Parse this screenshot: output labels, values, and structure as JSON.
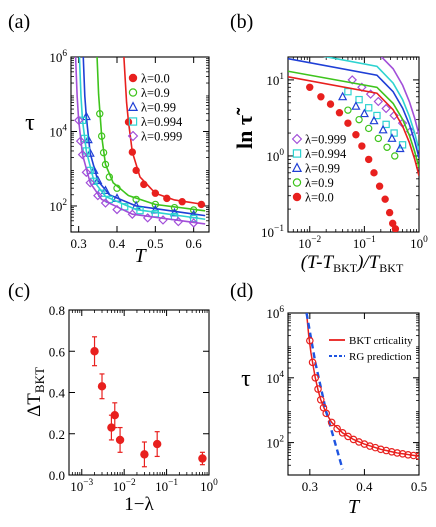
{
  "panels": {
    "a": {
      "label": "(a)"
    },
    "b": {
      "label": "(b)"
    },
    "c": {
      "label": "(c)"
    },
    "d": {
      "label": "(d)"
    }
  },
  "chart_data": [
    {
      "panel": "a",
      "type": "scatter",
      "xlabel": "T",
      "ylabel": "τ",
      "xscale": "linear",
      "yscale": "log",
      "xlim": [
        0.28,
        0.64
      ],
      "ylim": [
        20,
        1000000
      ],
      "xticks": [
        "0.3",
        "0.4",
        "0.5",
        "0.6"
      ],
      "yticks": [
        "10^2",
        "10^4",
        "10^6"
      ],
      "legend_position": "top-right",
      "series": [
        {
          "name": "λ=0.0",
          "marker": "filled-circle",
          "color": "#e8201e",
          "x": [
            0.43,
            0.44,
            0.45,
            0.47,
            0.5,
            0.53,
            0.57,
            0.62
          ],
          "y": [
            18000,
            2800,
            900,
            380,
            220,
            160,
            130,
            110
          ],
          "fit_x": [
            0.418,
            0.425,
            0.43,
            0.44,
            0.46,
            0.5,
            0.55,
            0.63
          ],
          "fit_y": [
            1000000,
            60000,
            18000,
            2800,
            600,
            220,
            145,
            108
          ]
        },
        {
          "name": "λ=0.9",
          "marker": "open-circle",
          "color": "#3ec41c",
          "x": [
            0.355,
            0.36,
            0.365,
            0.37,
            0.38,
            0.4,
            0.45,
            0.5,
            0.55,
            0.6
          ],
          "y": [
            30000,
            7500,
            2700,
            1300,
            600,
            300,
            150,
            110,
            90,
            78
          ],
          "fit_x": [
            0.348,
            0.352,
            0.36,
            0.37,
            0.39,
            0.43,
            0.5,
            0.63
          ],
          "fit_y": [
            1000000,
            100000,
            7500,
            1300,
            420,
            190,
            110,
            74
          ]
        },
        {
          "name": "λ=0.99",
          "marker": "open-triangle",
          "color": "#1f3fd6",
          "x": [
            0.32,
            0.325,
            0.33,
            0.34,
            0.35,
            0.37,
            0.4,
            0.45,
            0.5,
            0.55,
            0.6
          ],
          "y": [
            25000,
            6000,
            2600,
            900,
            480,
            260,
            160,
            100,
            78,
            65,
            58
          ],
          "fit_x": [
            0.312,
            0.316,
            0.32,
            0.33,
            0.35,
            0.38,
            0.45,
            0.63
          ],
          "fit_y": [
            1000000,
            90000,
            25000,
            2600,
            480,
            200,
            100,
            55
          ]
        },
        {
          "name": "λ=0.994",
          "marker": "open-square",
          "color": "#2ed3d0",
          "x": [
            0.31,
            0.315,
            0.32,
            0.33,
            0.34,
            0.36,
            0.38,
            0.42,
            0.46,
            0.5,
            0.55,
            0.6
          ],
          "y": [
            20000,
            6500,
            3000,
            900,
            460,
            220,
            150,
            95,
            75,
            62,
            52,
            46
          ],
          "fit_x": [
            0.302,
            0.306,
            0.31,
            0.32,
            0.34,
            0.37,
            0.45,
            0.63
          ],
          "fit_y": [
            1000000,
            90000,
            20000,
            3000,
            460,
            180,
            80,
            44
          ]
        },
        {
          "name": "λ=0.999",
          "marker": "open-diamond",
          "color": "#a24fd9",
          "x": [
            0.3,
            0.305,
            0.31,
            0.32,
            0.33,
            0.35,
            0.37,
            0.4,
            0.44,
            0.48,
            0.52,
            0.56,
            0.6
          ],
          "y": [
            20000,
            5500,
            2400,
            800,
            420,
            190,
            120,
            80,
            60,
            48,
            42,
            38,
            35
          ],
          "fit_x": [
            0.292,
            0.296,
            0.3,
            0.31,
            0.33,
            0.36,
            0.44,
            0.63
          ],
          "fit_y": [
            1000000,
            90000,
            20000,
            2400,
            420,
            150,
            60,
            33
          ]
        }
      ]
    },
    {
      "panel": "b",
      "type": "scatter",
      "xlabel": "(T-TBKT)/TBKT",
      "ylabel": "ln τ̃",
      "xscale": "log",
      "yscale": "log",
      "xlim": [
        0.004,
        1
      ],
      "ylim": [
        0.1,
        20
      ],
      "xticks": [
        "10^-2",
        "10^-1",
        "10^0"
      ],
      "yticks": [
        "10^-1",
        "10^0",
        "10^1"
      ],
      "legend_position": "bottom-left",
      "series": [
        {
          "name": "λ=0.999",
          "marker": "open-diamond",
          "color": "#a24fd9",
          "x": [
            0.06,
            0.09,
            0.13,
            0.18,
            0.25,
            0.35,
            0.5,
            0.7
          ],
          "y": [
            10,
            8,
            6.5,
            5.2,
            4.2,
            3.4,
            2.7,
            2.1
          ],
          "fit_x": [
            0.004,
            1
          ],
          "fit_y": [
            38,
            1.9
          ]
        },
        {
          "name": "λ=0.994",
          "marker": "open-square",
          "color": "#2ed3d0",
          "x": [
            0.05,
            0.08,
            0.12,
            0.17,
            0.25,
            0.35,
            0.5
          ],
          "y": [
            7,
            5.5,
            4.3,
            3.4,
            2.6,
            2,
            1.4
          ],
          "fit_x": [
            0.004,
            1
          ],
          "fit_y": [
            25,
            1.2
          ]
        },
        {
          "name": "λ=0.99",
          "marker": "open-triangle",
          "color": "#1f3fd6",
          "x": [
            0.04,
            0.07,
            0.1,
            0.15,
            0.22,
            0.32,
            0.45
          ],
          "y": [
            6,
            4.5,
            3.6,
            2.9,
            2.2,
            1.7,
            1.25
          ],
          "fit_x": [
            0.004,
            1
          ],
          "fit_y": [
            19,
            0.95
          ]
        },
        {
          "name": "λ=0.9",
          "marker": "open-circle",
          "color": "#3ec41c",
          "x": [
            0.05,
            0.08,
            0.12,
            0.18,
            0.26,
            0.36
          ],
          "y": [
            4,
            3,
            2.3,
            1.7,
            1.3,
            1
          ],
          "fit_x": [
            0.004,
            1
          ],
          "fit_y": [
            13,
            0.7
          ]
        },
        {
          "name": "λ=0.0",
          "marker": "filled-circle",
          "color": "#e8201e",
          "x": [
            0.01,
            0.016,
            0.024,
            0.035,
            0.05,
            0.07,
            0.09,
            0.12,
            0.15,
            0.19,
            0.24,
            0.29,
            0.33,
            0.37
          ],
          "y": [
            8,
            6,
            4.8,
            3.7,
            2.7,
            1.9,
            1.35,
            0.9,
            0.6,
            0.4,
            0.27,
            0.18,
            0.13,
            0.11
          ],
          "fit_x": [
            0.004,
            1
          ],
          "fit_y": [
            11,
            0.55
          ]
        }
      ]
    },
    {
      "panel": "c",
      "type": "scatter",
      "xlabel": "1−λ",
      "ylabel": "ΔTBKT",
      "xscale": "log",
      "yscale": "linear",
      "xlim": [
        0.0005,
        1
      ],
      "ylim": [
        0,
        0.8
      ],
      "xticks": [
        "10^-3",
        "10^-2",
        "10^-1",
        "10^0"
      ],
      "yticks": [
        "0.0",
        "0.2",
        "0.4",
        "0.6",
        "0.8"
      ],
      "series": [
        {
          "name": "",
          "marker": "filled-circle",
          "color": "#e8201e",
          "x": [
            0.002,
            0.003,
            0.005,
            0.006,
            0.008,
            0.03,
            0.06,
            0.7
          ],
          "y": [
            0.6,
            0.43,
            0.23,
            0.29,
            0.17,
            0.1,
            0.15,
            0.08
          ],
          "err": [
            0.07,
            0.06,
            0.06,
            0.06,
            0.06,
            0.06,
            0.06,
            0.03
          ]
        }
      ]
    },
    {
      "panel": "d",
      "type": "line",
      "xlabel": "T",
      "ylabel": "τ",
      "xscale": "linear",
      "yscale": "log",
      "xlim": [
        0.26,
        0.5
      ],
      "ylim": [
        10,
        1000000
      ],
      "xticks": [
        "0.3",
        "0.4",
        "0.5"
      ],
      "yticks": [
        "10^2",
        "10^4",
        "10^6"
      ],
      "legend_position": "top-right",
      "series": [
        {
          "name": "BKT crticality",
          "style": "solid-line",
          "color": "#e8201e",
          "x": [
            0.294,
            0.298,
            0.302,
            0.306,
            0.31,
            0.315,
            0.32,
            0.33,
            0.34,
            0.36,
            0.38,
            0.4,
            0.43,
            0.46,
            0.5
          ],
          "y": [
            1000000,
            200000,
            60000,
            24000,
            10000,
            4200,
            2100,
            800,
            420,
            200,
            125,
            90,
            62,
            48,
            38
          ]
        },
        {
          "name": "RG prediction",
          "style": "dashed-line",
          "color": "#1e54e0",
          "x": [
            0.294,
            0.31,
            0.33,
            0.36
          ],
          "y": [
            1000000,
            30000,
            900,
            15
          ]
        },
        {
          "name": "",
          "style": "open-circle-markers",
          "color": "#e8201e",
          "x": [
            0.3,
            0.305,
            0.31,
            0.315,
            0.32,
            0.325,
            0.33,
            0.34,
            0.35,
            0.36,
            0.37,
            0.38,
            0.39,
            0.4,
            0.41,
            0.42,
            0.43,
            0.44,
            0.45,
            0.46,
            0.47,
            0.48,
            0.49,
            0.5
          ],
          "y": [
            140000,
            30000,
            10000,
            4500,
            2100,
            1200,
            800,
            420,
            270,
            200,
            155,
            125,
            105,
            90,
            78,
            70,
            62,
            57,
            52,
            48,
            45,
            42,
            40,
            38
          ]
        }
      ]
    }
  ]
}
